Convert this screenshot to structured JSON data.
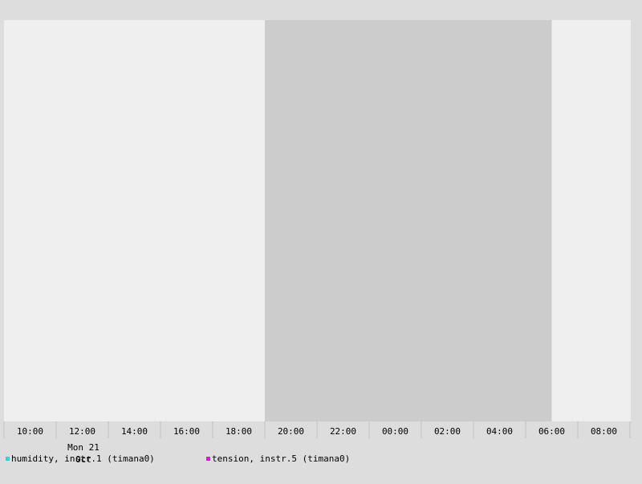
{
  "chart_data": {
    "type": "line",
    "x_start": "Mon 21 Oct 09:00",
    "x_ticks": [
      "10:00",
      "12:00",
      "14:00",
      "16:00",
      "18:00",
      "20:00",
      "22:00",
      "00:00",
      "02:00",
      "04:00",
      "06:00",
      "08:00"
    ],
    "date_label_day": "Mon 21",
    "date_label_month": "Oct",
    "shaded_range": [
      "19:00",
      "06:00"
    ],
    "series": [
      {
        "name": "humidity, instr.1 (timana0)",
        "color": "#00e5ee",
        "values": []
      },
      {
        "name": "tension, instr.5 (timana0)",
        "color": "#ff00ff",
        "values": []
      }
    ],
    "grid": false,
    "legend": "bottom",
    "colors": {
      "plot_bg": "#efefef",
      "night_bg": "#cccccc",
      "page_bg": "#dddddd"
    }
  }
}
